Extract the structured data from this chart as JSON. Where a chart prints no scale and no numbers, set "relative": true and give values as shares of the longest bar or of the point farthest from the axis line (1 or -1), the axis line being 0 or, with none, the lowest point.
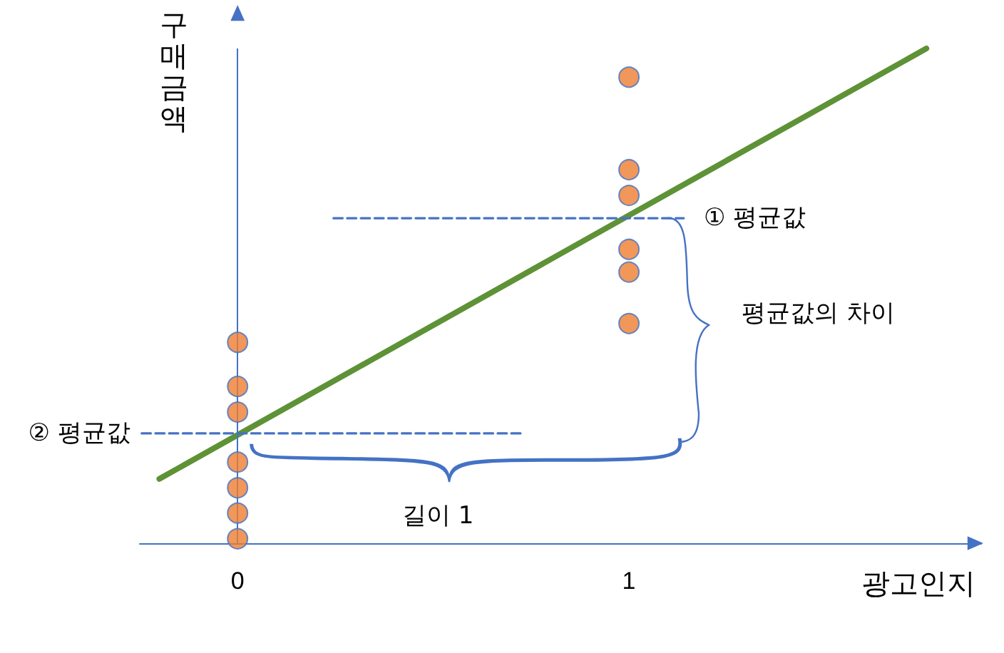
{
  "chart_data": {
    "type": "scatter",
    "relative": true,
    "xlabel": "광고인지",
    "ylabel": "구매금액",
    "xlim": [
      -0.25,
      1.9
    ],
    "xticks": [
      0,
      1
    ],
    "grid": false,
    "legend": false,
    "marker": "circle",
    "series": [
      {
        "type": "line",
        "color": "#5e9236",
        "x": [
          -0.2,
          1.76
        ],
        "values": [
          0.13,
          1
        ],
        "marker": "none",
        "line_style": "solid"
      },
      {
        "type": "line",
        "name": "① 평균값",
        "color": "#4472c4",
        "x": [
          0.245,
          1.14
        ],
        "values": [
          0.657,
          0.657
        ],
        "marker": "none",
        "line_style": "dashed"
      },
      {
        "type": "line",
        "name": "② 평균값",
        "color": "#4472c4",
        "x": [
          -0.245,
          0.73
        ],
        "values": [
          0.222,
          0.222
        ],
        "marker": "none",
        "line_style": "dashed"
      },
      {
        "type": "scatter",
        "color": "#ed7d31",
        "x": [
          0,
          0,
          0,
          0,
          0,
          0,
          0,
          1,
          1,
          1,
          1,
          1,
          1
        ],
        "values": [
          0.406,
          0.317,
          0.265,
          0.164,
          0.112,
          0.061,
          0.009,
          0.942,
          0.755,
          0.703,
          0.594,
          0.548,
          0.444
        ]
      }
    ],
    "ref_lines": [
      {
        "axis": "x",
        "value": 0,
        "color": "#4472c4"
      }
    ],
    "annotations": [
      "평균값의 차이",
      "길이 1"
    ]
  }
}
